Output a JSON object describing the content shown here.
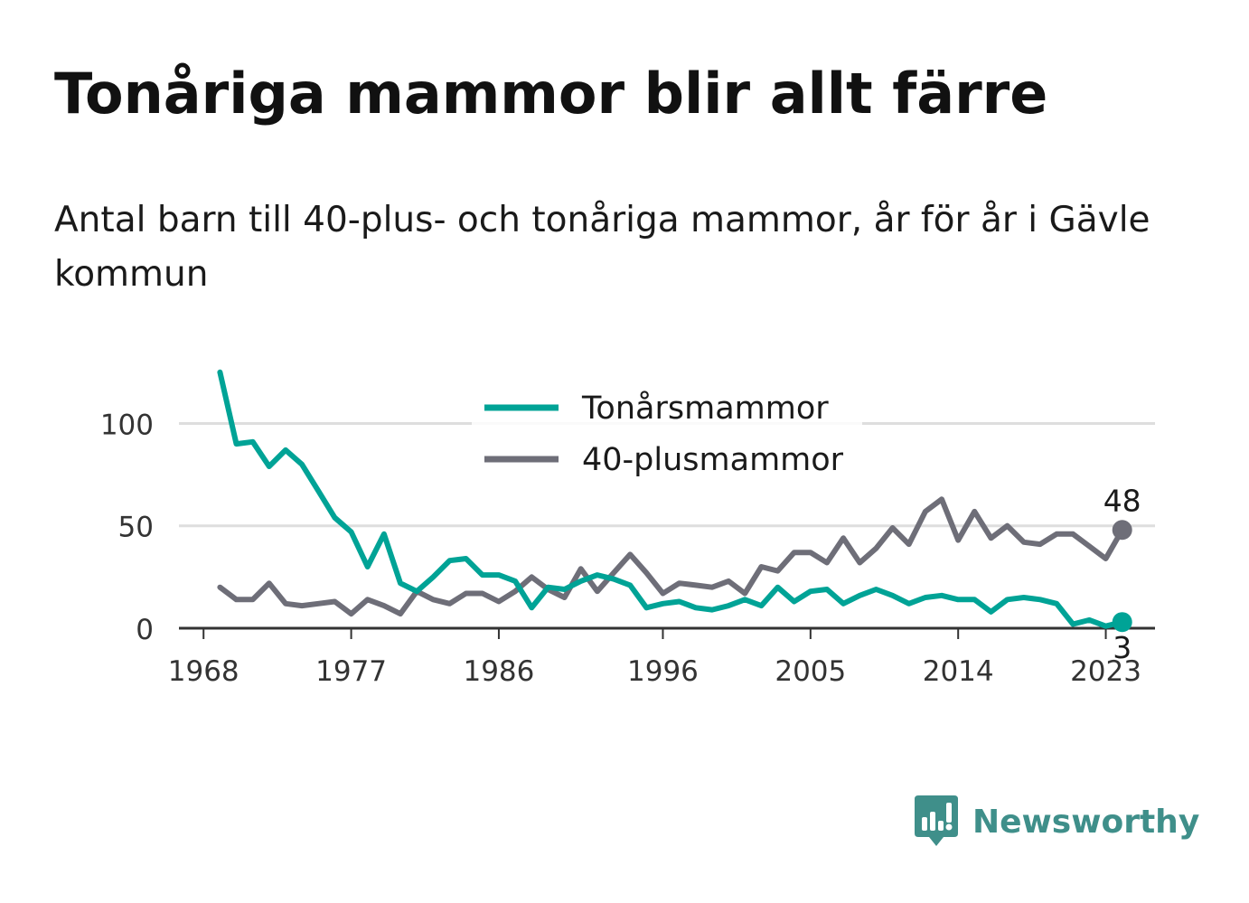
{
  "title": "Tonåriga mammor blir allt färre",
  "subtitle": "Antal barn till 40-plus- och tonåriga mammor, år för år i Gävle kommun",
  "brand": {
    "name": "Newsworthy",
    "icon": "bar-chart-speech-bubble-icon",
    "color": "#3f8f8a"
  },
  "chart_data": {
    "type": "line",
    "x": [
      1969,
      1970,
      1971,
      1972,
      1973,
      1974,
      1975,
      1976,
      1977,
      1978,
      1979,
      1980,
      1981,
      1982,
      1983,
      1984,
      1985,
      1986,
      1987,
      1988,
      1989,
      1990,
      1991,
      1992,
      1993,
      1994,
      1995,
      1996,
      1997,
      1998,
      1999,
      2000,
      2001,
      2002,
      2003,
      2004,
      2005,
      2006,
      2007,
      2008,
      2009,
      2010,
      2011,
      2012,
      2013,
      2014,
      2015,
      2016,
      2017,
      2018,
      2019,
      2020,
      2021,
      2022,
      2023,
      2024
    ],
    "series": [
      {
        "name": "Tonårsmammor",
        "color": "#00a396",
        "values": [
          125,
          90,
          91,
          79,
          87,
          80,
          67,
          54,
          47,
          30,
          46,
          22,
          18,
          25,
          33,
          34,
          26,
          26,
          23,
          10,
          20,
          19,
          23,
          26,
          24,
          21,
          10,
          12,
          13,
          10,
          9,
          11,
          14,
          11,
          20,
          13,
          18,
          19,
          12,
          16,
          19,
          16,
          12,
          15,
          16,
          14,
          14,
          8,
          14,
          15,
          14,
          12,
          2,
          4,
          1,
          3
        ]
      },
      {
        "name": "40-plusmammor",
        "color": "#6e6e78",
        "values": [
          20,
          14,
          14,
          22,
          12,
          11,
          12,
          13,
          7,
          14,
          11,
          7,
          18,
          14,
          12,
          17,
          17,
          13,
          18,
          25,
          19,
          15,
          29,
          18,
          27,
          36,
          27,
          17,
          22,
          21,
          20,
          23,
          17,
          30,
          28,
          37,
          37,
          32,
          44,
          32,
          39,
          49,
          41,
          57,
          63,
          43,
          57,
          44,
          50,
          42,
          41,
          46,
          46,
          40,
          34,
          48
        ]
      }
    ],
    "xticks": [
      1968,
      1977,
      1986,
      1996,
      2005,
      2014,
      2023
    ],
    "yticks": [
      0,
      50,
      100
    ],
    "xlim": [
      1966.5,
      2026
    ],
    "ylim": [
      0,
      128
    ],
    "grid": true,
    "legend": "top-center",
    "annotations": [
      {
        "series": "40-plusmammor",
        "x": 2024,
        "label": "48"
      },
      {
        "series": "Tonårsmammor",
        "x": 2024,
        "label": "3"
      }
    ],
    "xlabel": "",
    "ylabel": ""
  }
}
